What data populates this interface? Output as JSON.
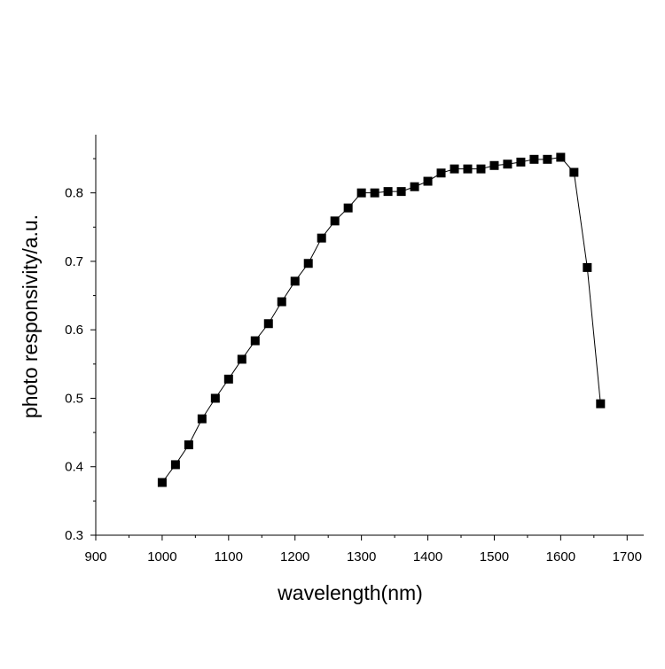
{
  "chart_data": {
    "type": "line",
    "title": "",
    "xlabel": "wavelength(nm)",
    "ylabel": "photo responsivity/a.u.",
    "xlim": [
      900,
      1725
    ],
    "ylim": [
      0.3,
      0.885
    ],
    "xticks": [
      900,
      1000,
      1100,
      1200,
      1300,
      1400,
      1500,
      1600,
      1700
    ],
    "xtick_labels": [
      "900",
      "1000",
      "1100",
      "1200",
      "1300",
      "1400",
      "1500",
      "1600",
      "1700"
    ],
    "yticks": [
      0.3,
      0.4,
      0.5,
      0.6,
      0.7,
      0.8
    ],
    "ytick_labels": [
      "0.3",
      "0.4",
      "0.5",
      "0.6",
      "0.7",
      "0.8"
    ],
    "grid": false,
    "marker": "square",
    "series": [
      {
        "name": "photo responsivity",
        "color": "#000000",
        "x": [
          1000,
          1020,
          1040,
          1060,
          1080,
          1100,
          1120,
          1140,
          1160,
          1180,
          1200,
          1220,
          1240,
          1260,
          1280,
          1300,
          1320,
          1340,
          1360,
          1380,
          1400,
          1420,
          1440,
          1460,
          1480,
          1500,
          1520,
          1540,
          1560,
          1580,
          1600,
          1620,
          1640,
          1660
        ],
        "y": [
          0.377,
          0.403,
          0.432,
          0.47,
          0.5,
          0.528,
          0.557,
          0.584,
          0.609,
          0.641,
          0.671,
          0.697,
          0.734,
          0.759,
          0.778,
          0.8,
          0.8,
          0.802,
          0.802,
          0.809,
          0.817,
          0.829,
          0.835,
          0.835,
          0.835,
          0.84,
          0.842,
          0.845,
          0.849,
          0.849,
          0.852,
          0.83,
          0.691,
          0.492
        ]
      }
    ]
  }
}
